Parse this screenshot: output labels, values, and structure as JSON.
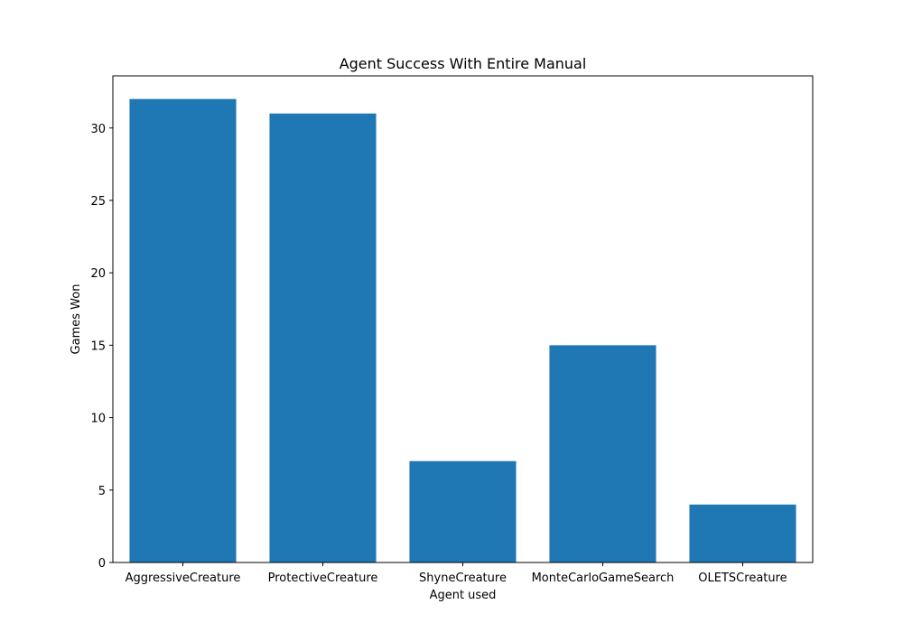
{
  "chart_data": {
    "type": "bar",
    "title": "Agent Success With Entire Manual",
    "xlabel": "Agent used",
    "ylabel": "Games Won",
    "categories": [
      "AggressiveCreature",
      "ProtectiveCreature",
      "ShyneCreature",
      "MonteCarloGameSearch",
      "OLETSCreature"
    ],
    "values": [
      32,
      31,
      7,
      15,
      4
    ],
    "ylim": [
      0,
      33.6
    ],
    "yticks": [
      0,
      5,
      10,
      15,
      20,
      25,
      30
    ],
    "bar_color": "#1f77b4",
    "grid": false,
    "legend": "none"
  }
}
